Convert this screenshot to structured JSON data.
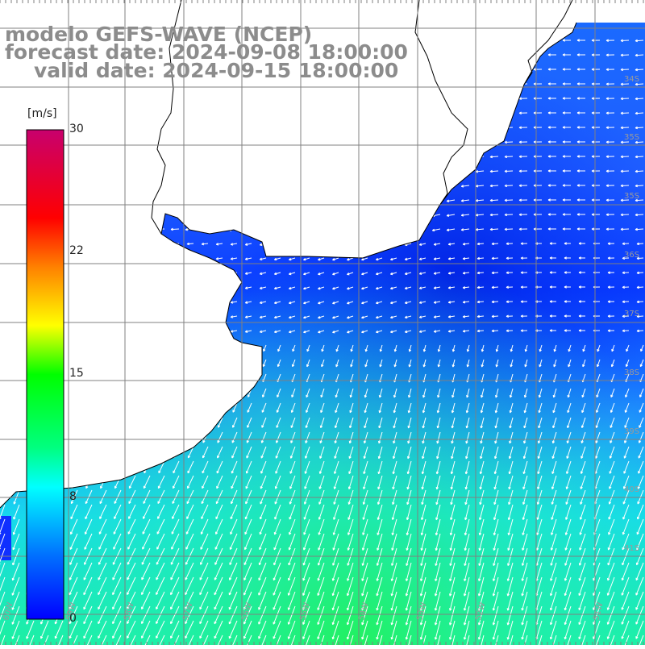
{
  "title": {
    "line1": "modelo GEFS-WAVE (NCEP)",
    "line2": "forecast date: 2024-09-08 18:00:00",
    "line3": "valid date: 2024-09-15 18:00:00"
  },
  "colorbar": {
    "unit_label": "[m/s]",
    "tick_labels": [
      "30",
      "22",
      "15",
      "8",
      "0"
    ],
    "colors": [
      "#0000ff",
      "#00a0ff",
      "#00ffff",
      "#00ff00",
      "#ffff00",
      "#ff8000",
      "#ff0000",
      "#c8006e"
    ]
  },
  "map": {
    "land_color": "#ffffff",
    "coastline_color": "#000000",
    "grid_color": "#808080",
    "lat_labels": [
      "34S",
      "35S",
      "35S",
      "36S",
      "37S",
      "38S",
      "39S",
      "40S",
      "41S"
    ],
    "lon_labels": [
      "60W",
      "59W",
      "58W",
      "57W",
      "56W",
      "55W",
      "54W",
      "53W",
      "52W",
      "51W"
    ]
  }
}
